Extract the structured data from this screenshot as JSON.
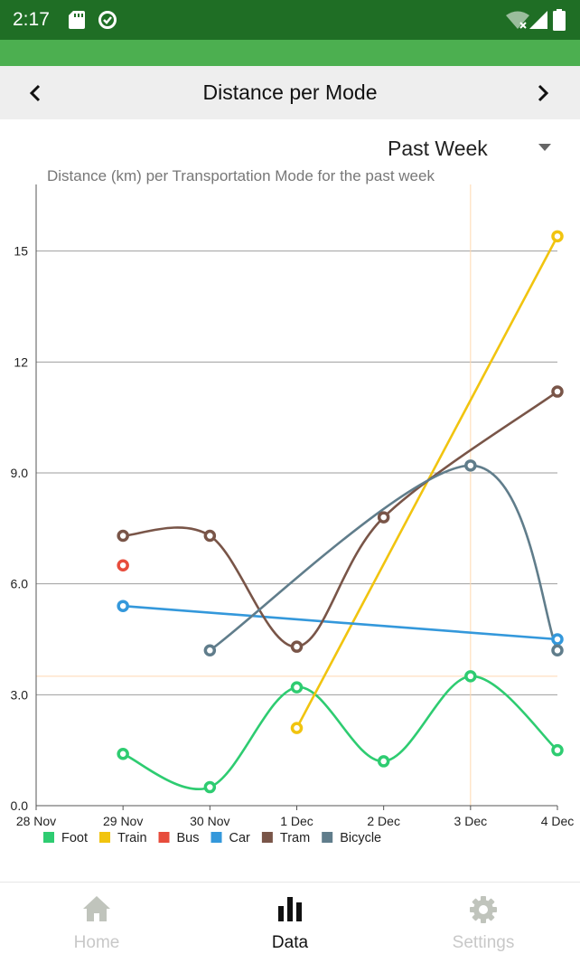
{
  "status_bar": {
    "time": "2:17"
  },
  "header": {
    "title": "Distance per Mode"
  },
  "period_select": {
    "value": "Past Week"
  },
  "chart_data": {
    "type": "line",
    "title": "Distance (km) per Transportation Mode for the past week",
    "categories": [
      "28 Nov",
      "29 Nov",
      "30 Nov",
      "1 Dec",
      "2 Dec",
      "3 Dec",
      "4 Dec"
    ],
    "yticks": [
      "0.0",
      "3.0",
      "6.0",
      "9.0",
      "12",
      "15"
    ],
    "ylim": [
      0,
      16.9
    ],
    "grid": true,
    "legend_position": "bottom-left",
    "series": [
      {
        "name": "Foot",
        "color": "#2ecc71",
        "smooth": true,
        "points": [
          [
            "29 Nov",
            1.4
          ],
          [
            "30 Nov",
            0.5
          ],
          [
            "1 Dec",
            3.2
          ],
          [
            "2 Dec",
            1.2
          ],
          [
            "3 Dec",
            3.5
          ],
          [
            "4 Dec",
            1.5
          ]
        ]
      },
      {
        "name": "Train",
        "color": "#f1c40f",
        "smooth": false,
        "points": [
          [
            "1 Dec",
            2.1
          ],
          [
            "4 Dec",
            15.4
          ]
        ]
      },
      {
        "name": "Bus",
        "color": "#e74c3c",
        "smooth": false,
        "points": [
          [
            "29 Nov",
            6.5
          ]
        ]
      },
      {
        "name": "Car",
        "color": "#3498db",
        "smooth": false,
        "points": [
          [
            "29 Nov",
            5.4
          ],
          [
            "4 Dec",
            4.5
          ]
        ]
      },
      {
        "name": "Tram",
        "color": "#795548",
        "smooth": true,
        "points": [
          [
            "29 Nov",
            7.3
          ],
          [
            "30 Nov",
            7.3
          ],
          [
            "1 Dec",
            4.3
          ],
          [
            "2 Dec",
            7.8
          ],
          [
            "4 Dec",
            11.2
          ]
        ]
      },
      {
        "name": "Bicycle",
        "color": "#607d8b",
        "smooth": true,
        "points": [
          [
            "30 Nov",
            4.2
          ],
          [
            "3 Dec",
            9.2
          ],
          [
            "4 Dec",
            4.2
          ]
        ]
      }
    ],
    "highlight": {
      "x": "3 Dec",
      "y": 3.5,
      "color": "#ffd8b0"
    }
  },
  "bottom_nav": {
    "items": [
      {
        "label": "Home",
        "icon": "home-icon"
      },
      {
        "label": "Data",
        "icon": "bar-chart-icon"
      },
      {
        "label": "Settings",
        "icon": "gear-icon"
      }
    ]
  }
}
